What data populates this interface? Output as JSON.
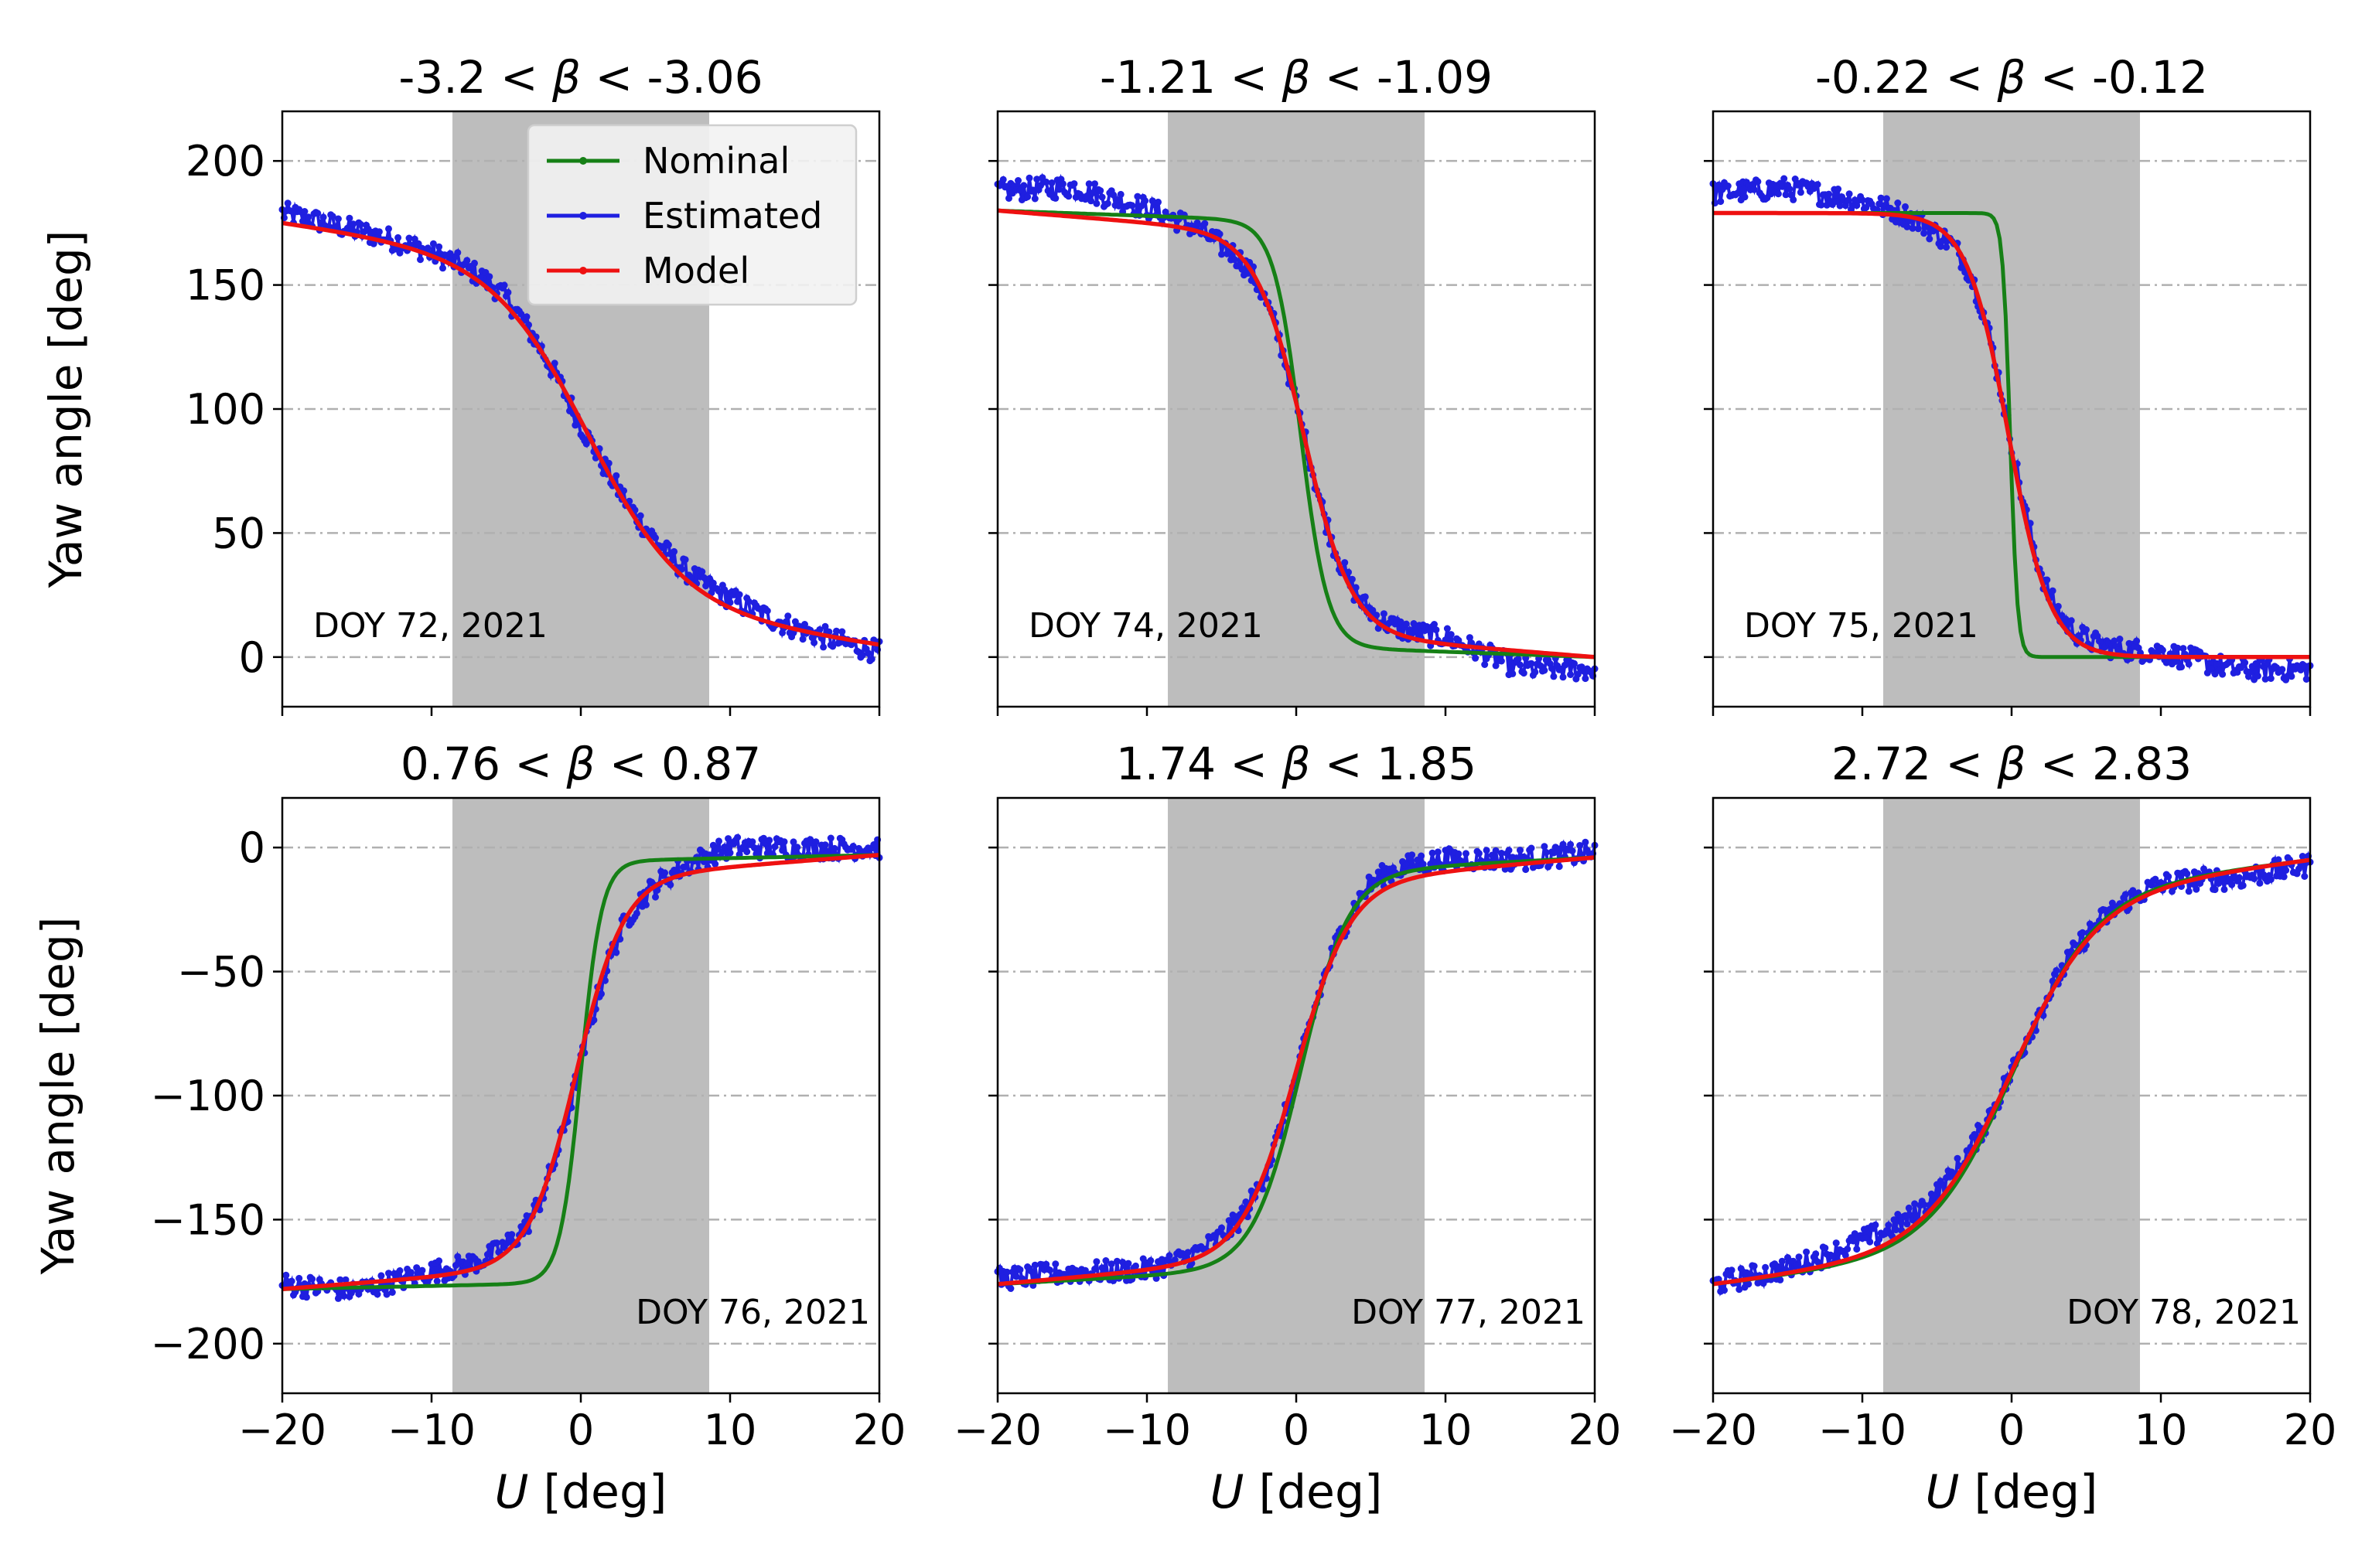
{
  "figure": {
    "ylabel": "Yaw angle [deg]",
    "xlabel_italic": "U",
    "xlabel_rest": " [deg]",
    "legend": [
      {
        "label": "Nominal",
        "color": "#168016"
      },
      {
        "label": "Estimated",
        "color": "#1f1fe0"
      },
      {
        "label": "Model",
        "color": "#ee1111"
      }
    ],
    "colors": {
      "shade": "#bdbdbd",
      "grid": "#b0b0b0"
    }
  },
  "chart_data": [
    {
      "type": "line",
      "title_pre": "-3.2 < ",
      "title_sym": "β",
      "title_post": " < -3.06",
      "annotation": "DOY 72, 2021",
      "annotation_pos": "left",
      "xlim": [
        -20,
        20
      ],
      "ylim": [
        -20,
        220
      ],
      "yticks": [
        0,
        50,
        100,
        150,
        200
      ],
      "ytick_labels": [
        "0",
        "50",
        "100",
        "150",
        "200"
      ],
      "xticks": [
        -20,
        -10,
        0,
        10,
        20
      ],
      "xtick_labels": [
        "−20",
        "−10",
        "0",
        "10",
        "20"
      ],
      "show_xticklabels": false,
      "show_ylabel": true,
      "show_yticklabels": true,
      "legend": true,
      "shade": [
        -8.6,
        8.6
      ],
      "start": 175,
      "end": 5,
      "model": {
        "center": 0.5,
        "scale": 3.2,
        "tail": 0.25
      },
      "nominal": {
        "center": 0.5,
        "scale": 3.2,
        "tail": 0.25,
        "visible": false
      },
      "estimated_offsets": {
        "x": [
          -20,
          -15,
          -10,
          -5,
          0,
          5,
          10,
          15,
          20
        ],
        "dy": [
          4,
          2,
          1,
          3,
          -2,
          3,
          4,
          0,
          -3
        ]
      }
    },
    {
      "type": "line",
      "title_pre": "-1.21 < ",
      "title_sym": "β",
      "title_post": " < -1.09",
      "annotation": "DOY 74, 2021",
      "annotation_pos": "left",
      "xlim": [
        -20,
        20
      ],
      "ylim": [
        -20,
        220
      ],
      "yticks": [
        0,
        50,
        100,
        150,
        200
      ],
      "ytick_labels": [
        "0",
        "50",
        "100",
        "150",
        "200"
      ],
      "xticks": [
        -20,
        -10,
        0,
        10,
        20
      ],
      "xtick_labels": [
        "−20",
        "−10",
        "0",
        "10",
        "20"
      ],
      "show_xticklabels": false,
      "show_ylabel": false,
      "show_yticklabels": false,
      "legend": false,
      "shade": [
        -8.6,
        8.6
      ],
      "start": 180,
      "end": 0,
      "model": {
        "center": 0.5,
        "scale": 1.6,
        "tail": 0.12
      },
      "nominal": {
        "center": 0.3,
        "scale": 0.9,
        "tail": 0.05,
        "visible": true
      },
      "estimated_offsets": {
        "x": [
          -20,
          -15,
          -10,
          -5,
          0,
          5,
          10,
          15,
          20
        ],
        "dy": [
          8,
          12,
          6,
          -2,
          0,
          2,
          3,
          -7,
          -5
        ]
      }
    },
    {
      "type": "line",
      "title_pre": "-0.22 < ",
      "title_sym": "β",
      "title_post": " < -0.12",
      "annotation": "DOY 75, 2021",
      "annotation_pos": "left",
      "xlim": [
        -20,
        20
      ],
      "ylim": [
        -20,
        220
      ],
      "yticks": [
        0,
        50,
        100,
        150,
        200
      ],
      "ytick_labels": [
        "0",
        "50",
        "100",
        "150",
        "200"
      ],
      "xticks": [
        -20,
        -10,
        0,
        10,
        20
      ],
      "xtick_labels": [
        "−20",
        "−10",
        "0",
        "10",
        "20"
      ],
      "show_xticklabels": false,
      "show_ylabel": false,
      "show_yticklabels": false,
      "legend": false,
      "shade": [
        -8.6,
        8.6
      ],
      "start": 179,
      "end": 0,
      "model": {
        "center": -0.2,
        "scale": 1.4,
        "tail": 0.0
      },
      "nominal": {
        "center": -0.1,
        "scale": 0.25,
        "tail": 0.0,
        "visible": true
      },
      "estimated_offsets": {
        "x": [
          -20,
          -15,
          -10,
          -5,
          0,
          5,
          10,
          15,
          20
        ],
        "dy": [
          8,
          10,
          5,
          -3,
          3,
          3,
          2,
          -5,
          -5
        ]
      }
    },
    {
      "type": "line",
      "title_pre": "0.76 < ",
      "title_sym": "β",
      "title_post": " < 0.87",
      "annotation": "DOY 76, 2021",
      "annotation_pos": "right",
      "xlim": [
        -20,
        20
      ],
      "ylim": [
        -220,
        20
      ],
      "yticks": [
        -200,
        -150,
        -100,
        -50,
        0
      ],
      "ytick_labels": [
        "−200",
        "−150",
        "−100",
        "−50",
        "0"
      ],
      "xticks": [
        -20,
        -10,
        0,
        10,
        20
      ],
      "xtick_labels": [
        "−20",
        "−10",
        "0",
        "10",
        "20"
      ],
      "show_xticklabels": true,
      "show_ylabel": true,
      "show_yticklabels": true,
      "legend": false,
      "shade": [
        -8.6,
        8.6
      ],
      "start": -178,
      "end": -3,
      "model": {
        "center": -0.3,
        "scale": 1.6,
        "tail": 0.12
      },
      "nominal": {
        "center": 0.0,
        "scale": 0.7,
        "tail": 0.03,
        "visible": true
      },
      "estimated_offsets": {
        "x": [
          -20,
          -15,
          -10,
          -5,
          0,
          5,
          10,
          15,
          20
        ],
        "dy": [
          2,
          -3,
          2,
          3,
          -4,
          0,
          8,
          5,
          3
        ]
      }
    },
    {
      "type": "line",
      "title_pre": "1.74 < ",
      "title_sym": "β",
      "title_post": " < 1.85",
      "annotation": "DOY 77, 2021",
      "annotation_pos": "right",
      "xlim": [
        -20,
        20
      ],
      "ylim": [
        -220,
        20
      ],
      "yticks": [
        -200,
        -150,
        -100,
        -50,
        0
      ],
      "ytick_labels": [
        "−200",
        "−150",
        "−100",
        "−50",
        "0"
      ],
      "xticks": [
        -20,
        -10,
        0,
        10,
        20
      ],
      "xtick_labels": [
        "−20",
        "−10",
        "0",
        "10",
        "20"
      ],
      "show_xticklabels": true,
      "show_ylabel": false,
      "show_yticklabels": false,
      "legend": false,
      "shade": [
        -8.6,
        8.6
      ],
      "start": -176,
      "end": -4,
      "model": {
        "center": 0.0,
        "scale": 1.8,
        "tail": 0.14
      },
      "nominal": {
        "center": 0.3,
        "scale": 1.6,
        "tail": 0.08,
        "visible": true
      },
      "estimated_offsets": {
        "x": [
          -20,
          -15,
          -10,
          -5,
          0,
          5,
          10,
          15,
          20
        ],
        "dy": [
          2,
          2,
          0,
          3,
          -3,
          6,
          5,
          2,
          2
        ]
      }
    },
    {
      "type": "line",
      "title_pre": "2.72 < ",
      "title_sym": "β",
      "title_post": " < 2.83",
      "annotation": "DOY 78, 2021",
      "annotation_pos": "right",
      "xlim": [
        -20,
        20
      ],
      "ylim": [
        -220,
        20
      ],
      "yticks": [
        -200,
        -150,
        -100,
        -50,
        0
      ],
      "ytick_labels": [
        "−200",
        "−150",
        "−100",
        "−50",
        "0"
      ],
      "xticks": [
        -20,
        -10,
        0,
        10,
        20
      ],
      "xtick_labels": [
        "−20",
        "−10",
        "0",
        "10",
        "20"
      ],
      "show_xticklabels": true,
      "show_ylabel": false,
      "show_yticklabels": false,
      "legend": false,
      "shade": [
        -8.6,
        8.6
      ],
      "start": -176,
      "end": -5,
      "model": {
        "center": 0.0,
        "scale": 2.9,
        "tail": 0.22
      },
      "nominal": {
        "center": 0.1,
        "scale": 2.8,
        "tail": 0.2,
        "visible": true
      },
      "estimated_offsets": {
        "x": [
          -20,
          -15,
          -10,
          -5,
          0,
          5,
          10,
          15,
          20
        ],
        "dy": [
          0,
          2,
          6,
          4,
          0,
          2,
          2,
          -3,
          -2
        ]
      }
    }
  ]
}
